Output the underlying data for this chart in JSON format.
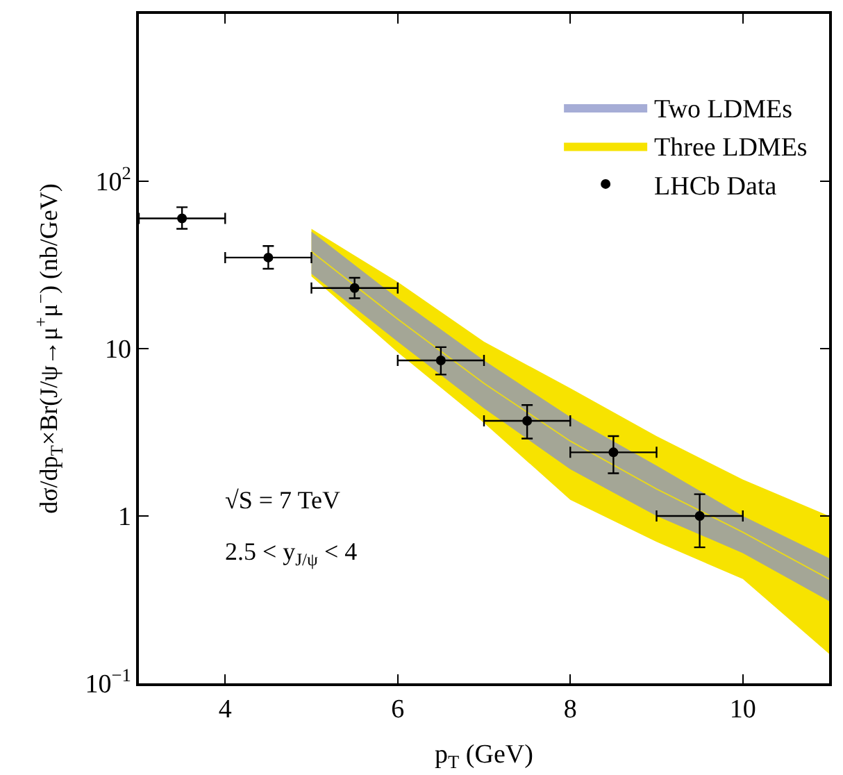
{
  "chart_data": {
    "type": "scatter",
    "xlabel": "p$_{T}$ (GeV)",
    "ylabel": "dσ/dp$_{T}$×Br(J/ψ→μ$^{+}$μ$^{−}$) (nb/GeV)",
    "log": "y",
    "xlim": [
      3,
      11
    ],
    "ylim": [
      0.1,
      1000
    ],
    "xticks": [
      4,
      6,
      8,
      10
    ],
    "yticks": [
      {
        "value": 0.1,
        "label": "10$^{−1}$"
      },
      1,
      10,
      {
        "value": 100,
        "label": "10$^{2}$"
      }
    ],
    "legend": "top right",
    "marker": "circle",
    "series": [
      {
        "name": "Two LDMEs",
        "type": "line",
        "marker": "none",
        "color": "#8891c8",
        "x": [
          5,
          6,
          7,
          8,
          9,
          10,
          11
        ],
        "values": [
          null,
          null,
          null,
          null,
          null,
          null,
          null
        ],
        "lower": [
          28,
          11,
          4.4,
          1.9,
          1.0,
          0.6,
          0.31
        ],
        "upper": [
          50,
          20,
          8.5,
          3.9,
          2.0,
          1.0,
          0.56
        ]
      },
      {
        "name": "Three LDMEs",
        "type": "line",
        "marker": "none",
        "color": "#f7e300",
        "x": [
          5,
          6,
          7,
          8,
          9,
          10,
          11
        ],
        "values": [
          38,
          15,
          6.2,
          2.8,
          1.45,
          0.8,
          0.42
        ],
        "lower": [
          27,
          9.5,
          3.6,
          1.25,
          0.7,
          0.42,
          0.15
        ],
        "upper": [
          52,
          25,
          11,
          5.8,
          3.0,
          1.65,
          1.0
        ]
      },
      {
        "name": "LHCb Data",
        "color": "#000000",
        "x": [
          3.5,
          4.5,
          5.5,
          6.5,
          7.5,
          8.5,
          9.5
        ],
        "values": [
          60,
          35,
          23,
          8.5,
          3.7,
          2.4,
          1.0
        ],
        "errors": [
          [
            52,
            70
          ],
          [
            30,
            41
          ],
          [
            20,
            26.5
          ],
          [
            7,
            10.2
          ],
          [
            2.9,
            4.6
          ],
          [
            1.8,
            3.0
          ],
          [
            0.65,
            1.35
          ]
        ],
        "xerrors": [
          0.5,
          0.5,
          0.5,
          0.5,
          0.5,
          0.5,
          0.5
        ]
      }
    ],
    "annotations": [
      "√S = 7 TeV",
      "2.5 < y$_{J/ψ}$ < 4"
    ]
  }
}
